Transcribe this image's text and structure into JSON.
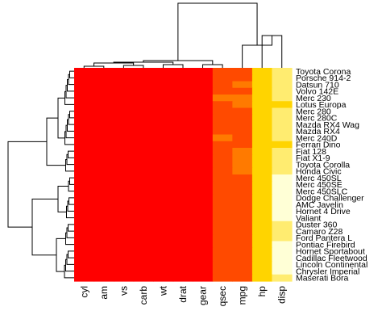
{
  "chart_data": {
    "type": "heatmap",
    "title": "",
    "xlabel": "",
    "ylabel": "",
    "columns": [
      "cyl",
      "am",
      "vs",
      "carb",
      "wt",
      "drat",
      "gear",
      "qsec",
      "mpg",
      "hp",
      "disp"
    ],
    "rows": [
      "Toyota Corona",
      "Porsche 914-2",
      "Datsun 710",
      "Volvo 142E",
      "Merc 230",
      "Lotus Europa",
      "Merc 280",
      "Merc 280C",
      "Mazda RX4 Wag",
      "Mazda RX4",
      "Merc 240D",
      "Ferrari Dino",
      "Fiat 128",
      "Fiat X1-9",
      "Toyota Corolla",
      "Honda Civic",
      "Merc 450SL",
      "Merc 450SE",
      "Merc 450SLC",
      "Dodge Challenger",
      "AMC Javelin",
      "Hornet 4 Drive",
      "Valiant",
      "Duster 360",
      "Camaro Z28",
      "Ford Pantera L",
      "Pontiac Firebird",
      "Hornet Sportabout",
      "Cadillac Fleetwood",
      "Lincoln Continental",
      "Chrysler Imperial",
      "Maserati Bora"
    ],
    "values": [
      [
        0,
        0,
        0,
        0,
        0,
        0,
        0,
        1,
        1,
        3,
        4
      ],
      [
        0,
        0,
        0,
        0,
        0,
        0,
        0,
        1,
        1,
        3,
        4
      ],
      [
        0,
        0,
        0,
        0,
        0,
        0,
        0,
        1,
        2,
        3,
        4
      ],
      [
        0,
        0,
        0,
        0,
        0,
        0,
        0,
        1,
        1,
        3,
        4
      ],
      [
        0,
        0,
        0,
        0,
        0,
        0,
        0,
        2,
        2,
        3,
        4
      ],
      [
        0,
        0,
        0,
        0,
        0,
        0,
        0,
        1,
        2,
        3,
        3
      ],
      [
        0,
        0,
        0,
        0,
        0,
        0,
        0,
        1,
        1,
        3,
        4
      ],
      [
        0,
        0,
        0,
        0,
        0,
        0,
        0,
        1,
        1,
        3,
        4
      ],
      [
        0,
        0,
        0,
        0,
        0,
        0,
        0,
        1,
        1,
        3,
        4
      ],
      [
        0,
        0,
        0,
        0,
        0,
        0,
        0,
        1,
        1,
        3,
        4
      ],
      [
        0,
        0,
        0,
        0,
        0,
        0,
        0,
        2,
        1,
        3,
        4
      ],
      [
        0,
        0,
        0,
        0,
        0,
        0,
        0,
        1,
        1,
        3,
        3
      ],
      [
        0,
        0,
        0,
        0,
        0,
        0,
        0,
        1,
        2,
        3,
        4
      ],
      [
        0,
        0,
        0,
        0,
        0,
        0,
        0,
        1,
        2,
        3,
        4
      ],
      [
        0,
        0,
        0,
        0,
        0,
        0,
        0,
        1,
        2,
        3,
        4
      ],
      [
        0,
        0,
        0,
        0,
        0,
        0,
        0,
        1,
        2,
        3,
        4
      ],
      [
        0,
        0,
        0,
        0,
        0,
        0,
        0,
        1,
        1,
        3,
        5
      ],
      [
        0,
        0,
        0,
        0,
        0,
        0,
        0,
        1,
        1,
        3,
        5
      ],
      [
        0,
        0,
        0,
        0,
        0,
        0,
        0,
        1,
        1,
        3,
        5
      ],
      [
        0,
        0,
        0,
        0,
        0,
        0,
        0,
        1,
        1,
        3,
        5
      ],
      [
        0,
        0,
        0,
        0,
        0,
        0,
        0,
        1,
        1,
        3,
        5
      ],
      [
        0,
        0,
        0,
        0,
        0,
        0,
        0,
        1,
        1,
        3,
        5
      ],
      [
        0,
        0,
        0,
        0,
        0,
        0,
        0,
        1,
        1,
        3,
        5
      ],
      [
        0,
        0,
        0,
        0,
        0,
        0,
        0,
        1,
        1,
        3,
        4
      ],
      [
        0,
        0,
        0,
        0,
        0,
        0,
        0,
        1,
        1,
        3,
        4
      ],
      [
        0,
        0,
        0,
        0,
        0,
        0,
        0,
        1,
        1,
        3,
        4
      ],
      [
        0,
        0,
        0,
        0,
        0,
        0,
        0,
        1,
        1,
        3,
        5
      ],
      [
        0,
        0,
        0,
        0,
        0,
        0,
        0,
        1,
        1,
        3,
        5
      ],
      [
        0,
        0,
        0,
        0,
        0,
        0,
        0,
        1,
        1,
        3,
        5
      ],
      [
        0,
        0,
        0,
        0,
        0,
        0,
        0,
        1,
        1,
        3,
        5
      ],
      [
        0,
        0,
        0,
        0,
        0,
        0,
        0,
        1,
        1,
        3,
        5
      ],
      [
        0,
        0,
        0,
        0,
        0,
        0,
        0,
        1,
        1,
        3,
        4
      ]
    ],
    "color_scale": [
      "#ff0000",
      "#ff4a00",
      "#ff7a00",
      "#ffd400",
      "#ffec70",
      "#ffffd6"
    ],
    "value_levels": "0 = lowest (red) to 5 = highest (pale yellow)",
    "legend": "none",
    "grid": false
  }
}
